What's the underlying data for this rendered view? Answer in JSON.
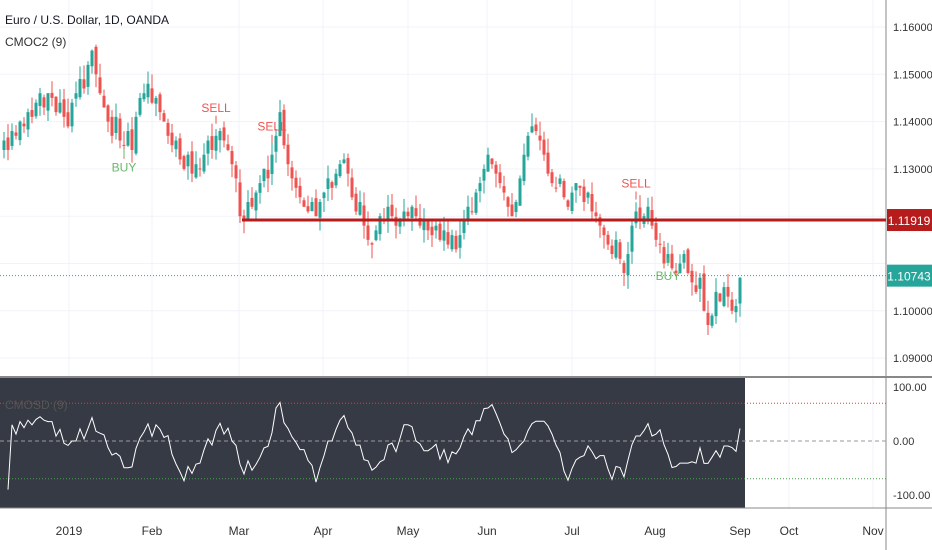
{
  "header": {
    "title": "Euro / U.S. Dollar, 1D, OANDA",
    "indicator": "CMOC2 (9)",
    "oscillator_label": "CMOSD (9)"
  },
  "chart_data": {
    "type": "candlestick",
    "ylim": [
      1.087,
      1.165
    ],
    "y_ticks": [
      "1.16000",
      "1.15000",
      "1.14000",
      "1.13000",
      "1.12000",
      "1.11000",
      "1.10000",
      "1.09000"
    ],
    "x_ticks": [
      "2019",
      "Feb",
      "Mar",
      "Apr",
      "May",
      "Jun",
      "Jul",
      "Aug",
      "Sep",
      "Oct",
      "Nov"
    ],
    "closes": [
      1.136,
      1.134,
      1.138,
      1.137,
      1.14,
      1.139,
      1.142,
      1.141,
      1.144,
      1.146,
      1.143,
      1.146,
      1.145,
      1.142,
      1.144,
      1.141,
      1.139,
      1.144,
      1.146,
      1.149,
      1.147,
      1.152,
      1.155,
      1.15,
      1.146,
      1.143,
      1.14,
      1.137,
      1.141,
      1.136,
      1.135,
      1.138,
      1.134,
      1.141,
      1.145,
      1.146,
      1.148,
      1.144,
      1.145,
      1.142,
      1.14,
      1.137,
      1.135,
      1.136,
      1.132,
      1.13,
      1.133,
      1.129,
      1.131,
      1.13,
      1.133,
      1.136,
      1.134,
      1.137,
      1.138,
      1.136,
      1.134,
      1.131,
      1.128,
      1.12,
      1.119,
      1.123,
      1.122,
      1.125,
      1.127,
      1.13,
      1.128,
      1.133,
      1.137,
      1.142,
      1.135,
      1.131,
      1.128,
      1.126,
      1.124,
      1.122,
      1.121,
      1.123,
      1.12,
      1.123,
      1.125,
      1.128,
      1.126,
      1.129,
      1.131,
      1.132,
      1.129,
      1.124,
      1.121,
      1.123,
      1.118,
      1.115,
      1.114,
      1.117,
      1.12,
      1.119,
      1.122,
      1.12,
      1.118,
      1.119,
      1.121,
      1.12,
      1.122,
      1.12,
      1.118,
      1.119,
      1.117,
      1.116,
      1.118,
      1.115,
      1.117,
      1.114,
      1.116,
      1.113,
      1.116,
      1.119,
      1.122,
      1.121,
      1.125,
      1.127,
      1.13,
      1.133,
      1.131,
      1.129,
      1.127,
      1.125,
      1.122,
      1.12,
      1.123,
      1.128,
      1.133,
      1.137,
      1.139,
      1.138,
      1.136,
      1.133,
      1.129,
      1.127,
      1.126,
      1.128,
      1.124,
      1.122,
      1.125,
      1.127,
      1.126,
      1.123,
      1.125,
      1.121,
      1.12,
      1.118,
      1.116,
      1.114,
      1.112,
      1.115,
      1.111,
      1.108,
      1.112,
      1.118,
      1.121,
      1.119,
      1.12,
      1.122,
      1.118,
      1.115,
      1.114,
      1.11,
      1.112,
      1.109,
      1.108,
      1.11,
      1.112,
      1.108,
      1.106,
      1.104,
      1.107,
      1.1,
      1.097,
      1.099,
      1.104,
      1.102,
      1.105,
      1.103,
      1.1,
      1.101,
      1.107
    ],
    "signals": [
      {
        "index": 30,
        "label": "BUY"
      },
      {
        "index": 53,
        "label": "SELL"
      },
      {
        "index": 67,
        "label": "SELL"
      },
      {
        "index": 158,
        "label": "SELL"
      },
      {
        "index": 166,
        "label": "BUY"
      }
    ],
    "horizontal_line": {
      "value": 1.11919,
      "label": "1.11919",
      "color": "#b71c1c"
    },
    "last_price": {
      "value": 1.10743,
      "label": "1.10743",
      "color": "#26a69a"
    },
    "colors": {
      "up": "#26a69a",
      "down": "#ef5350",
      "osc_bg": "#363a45"
    },
    "oscillator": {
      "period": 9,
      "ylim": [
        -100,
        100
      ],
      "y_ticks": [
        "100.00",
        "0.00",
        "-100.00"
      ],
      "upper": 70,
      "lower": -70
    }
  }
}
